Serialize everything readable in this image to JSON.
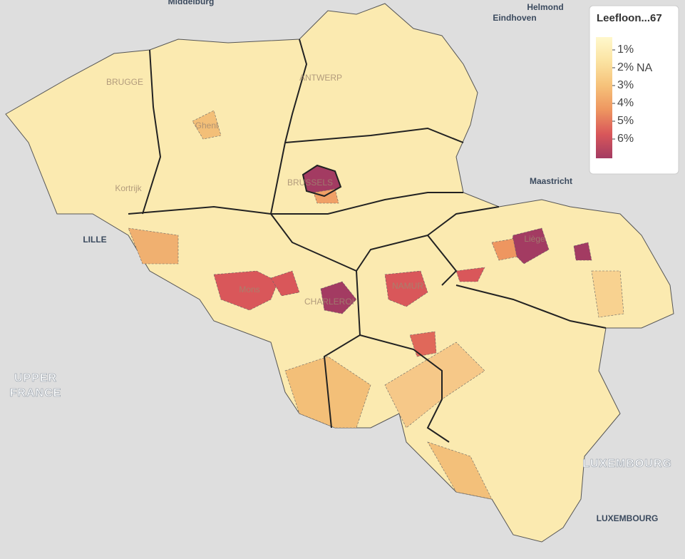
{
  "map": {
    "places": [
      "Middelburg",
      "Eindhoven",
      "Helmond",
      "BRUGGE",
      "ANTWERP",
      "Ghent",
      "BRUSSELS",
      "Kortrijk",
      "LILLE",
      "Mons",
      "CHARLEROI",
      "NAMUR",
      "Liège",
      "Maastricht",
      "UPPER",
      "FRANCE",
      "LUXEMBOURG",
      "LUXEMBOURG"
    ],
    "legend": {
      "title": "Leefloon...67",
      "ticks": [
        "1%",
        "2%",
        "3%",
        "4%",
        "5%",
        "6%"
      ],
      "na": "NA",
      "colors": [
        "#fff8cc",
        "#fbe3a2",
        "#f6c27a",
        "#ee9660",
        "#d9575a",
        "#a33b62"
      ]
    }
  }
}
